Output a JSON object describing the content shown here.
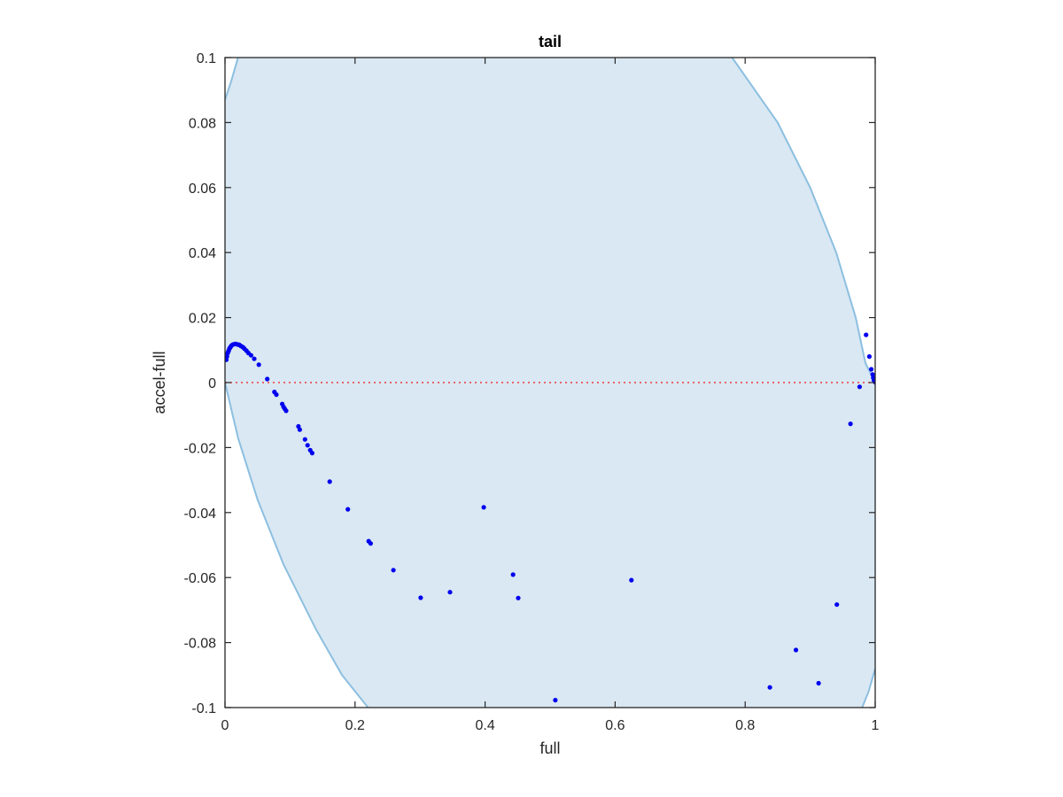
{
  "chart_data": {
    "type": "scatter",
    "title": "tail",
    "xlabel": "full",
    "ylabel": "accel-full",
    "xlim": [
      0,
      1
    ],
    "ylim": [
      -0.1,
      0.1
    ],
    "xticks": [
      "0",
      "0.2",
      "0.4",
      "0.6",
      "0.8",
      "1"
    ],
    "xtick_values": [
      0,
      0.2,
      0.4,
      0.6,
      0.8,
      1
    ],
    "yticks": [
      "-0.1",
      "-0.08",
      "-0.06",
      "-0.04",
      "-0.02",
      "0",
      "0.02",
      "0.04",
      "0.06",
      "0.08",
      "0.1"
    ],
    "ytick_values": [
      -0.1,
      -0.08,
      -0.06,
      -0.04,
      -0.02,
      0,
      0.02,
      0.04,
      0.06,
      0.08,
      0.1
    ],
    "grid": false,
    "legend": "none",
    "colors": {
      "points": "#0000ee",
      "region_fill": "#d9e8f3",
      "region_edge": "#8cbfe0",
      "zero_line": "#ee3b3b",
      "axes": "#262626"
    },
    "shaded_region": {
      "left_boundary": [
        [
          0.0,
          0.087
        ],
        [
          0.01,
          0.093
        ],
        [
          0.02,
          0.1
        ],
        [
          0.016,
          0.1
        ]
      ],
      "left_curve": [
        [
          0.0,
          0.0
        ],
        [
          0.02,
          -0.017
        ],
        [
          0.05,
          -0.036
        ],
        [
          0.09,
          -0.056
        ],
        [
          0.14,
          -0.076
        ],
        [
          0.18,
          -0.09
        ],
        [
          0.22,
          -0.1
        ]
      ],
      "right_curve": [
        [
          0.78,
          0.1
        ],
        [
          0.85,
          0.08
        ],
        [
          0.9,
          0.06
        ],
        [
          0.94,
          0.04
        ],
        [
          0.97,
          0.02
        ],
        [
          0.985,
          0.006
        ],
        [
          1.0,
          0.0
        ]
      ],
      "right_corner": [
        [
          0.98,
          -0.1
        ],
        [
          0.99,
          -0.095
        ],
        [
          1.0,
          -0.088
        ]
      ]
    },
    "reference_line": {
      "y": 0,
      "style": "dotted"
    },
    "series": [
      {
        "marker": "point",
        "x": [
          0.002,
          0.003,
          0.004,
          0.005,
          0.006,
          0.007,
          0.008,
          0.009,
          0.01,
          0.012,
          0.014,
          0.016,
          0.018,
          0.02,
          0.022,
          0.024,
          0.026,
          0.028,
          0.03,
          0.033,
          0.036,
          0.04,
          0.045,
          0.052,
          0.065,
          0.076,
          0.079,
          0.088,
          0.09,
          0.092,
          0.094,
          0.113,
          0.115,
          0.123,
          0.127,
          0.131,
          0.134,
          0.161,
          0.189,
          0.221,
          0.224,
          0.259,
          0.301,
          0.346,
          0.398,
          0.443,
          0.451,
          0.508,
          0.625,
          0.838,
          0.878,
          0.913,
          0.941,
          0.962,
          0.976,
          0.986,
          0.991,
          0.994,
          0.996,
          0.997,
          0.998,
          0.999,
          1.0
        ],
        "y": [
          0.007,
          0.008,
          0.009,
          0.0095,
          0.01,
          0.0105,
          0.0108,
          0.0111,
          0.0114,
          0.0117,
          0.0118,
          0.0119,
          0.0118,
          0.0117,
          0.0116,
          0.0113,
          0.0111,
          0.0108,
          0.0104,
          0.0098,
          0.0091,
          0.0084,
          0.0073,
          0.0055,
          0.0011,
          -0.0029,
          -0.0037,
          -0.0066,
          -0.0075,
          -0.0081,
          -0.0087,
          -0.0135,
          -0.0145,
          -0.0175,
          -0.0193,
          -0.0208,
          -0.0217,
          -0.0305,
          -0.039,
          -0.0488,
          -0.0495,
          -0.0577,
          -0.0662,
          -0.0645,
          -0.0384,
          -0.0591,
          -0.0663,
          -0.0977,
          -0.0608,
          -0.0938,
          -0.0823,
          -0.0925,
          -0.0683,
          -0.0127,
          -0.0013,
          0.0147,
          0.008,
          0.0041,
          0.0025,
          0.0015,
          0.0008,
          0.0004,
          0.0001
        ]
      }
    ]
  }
}
